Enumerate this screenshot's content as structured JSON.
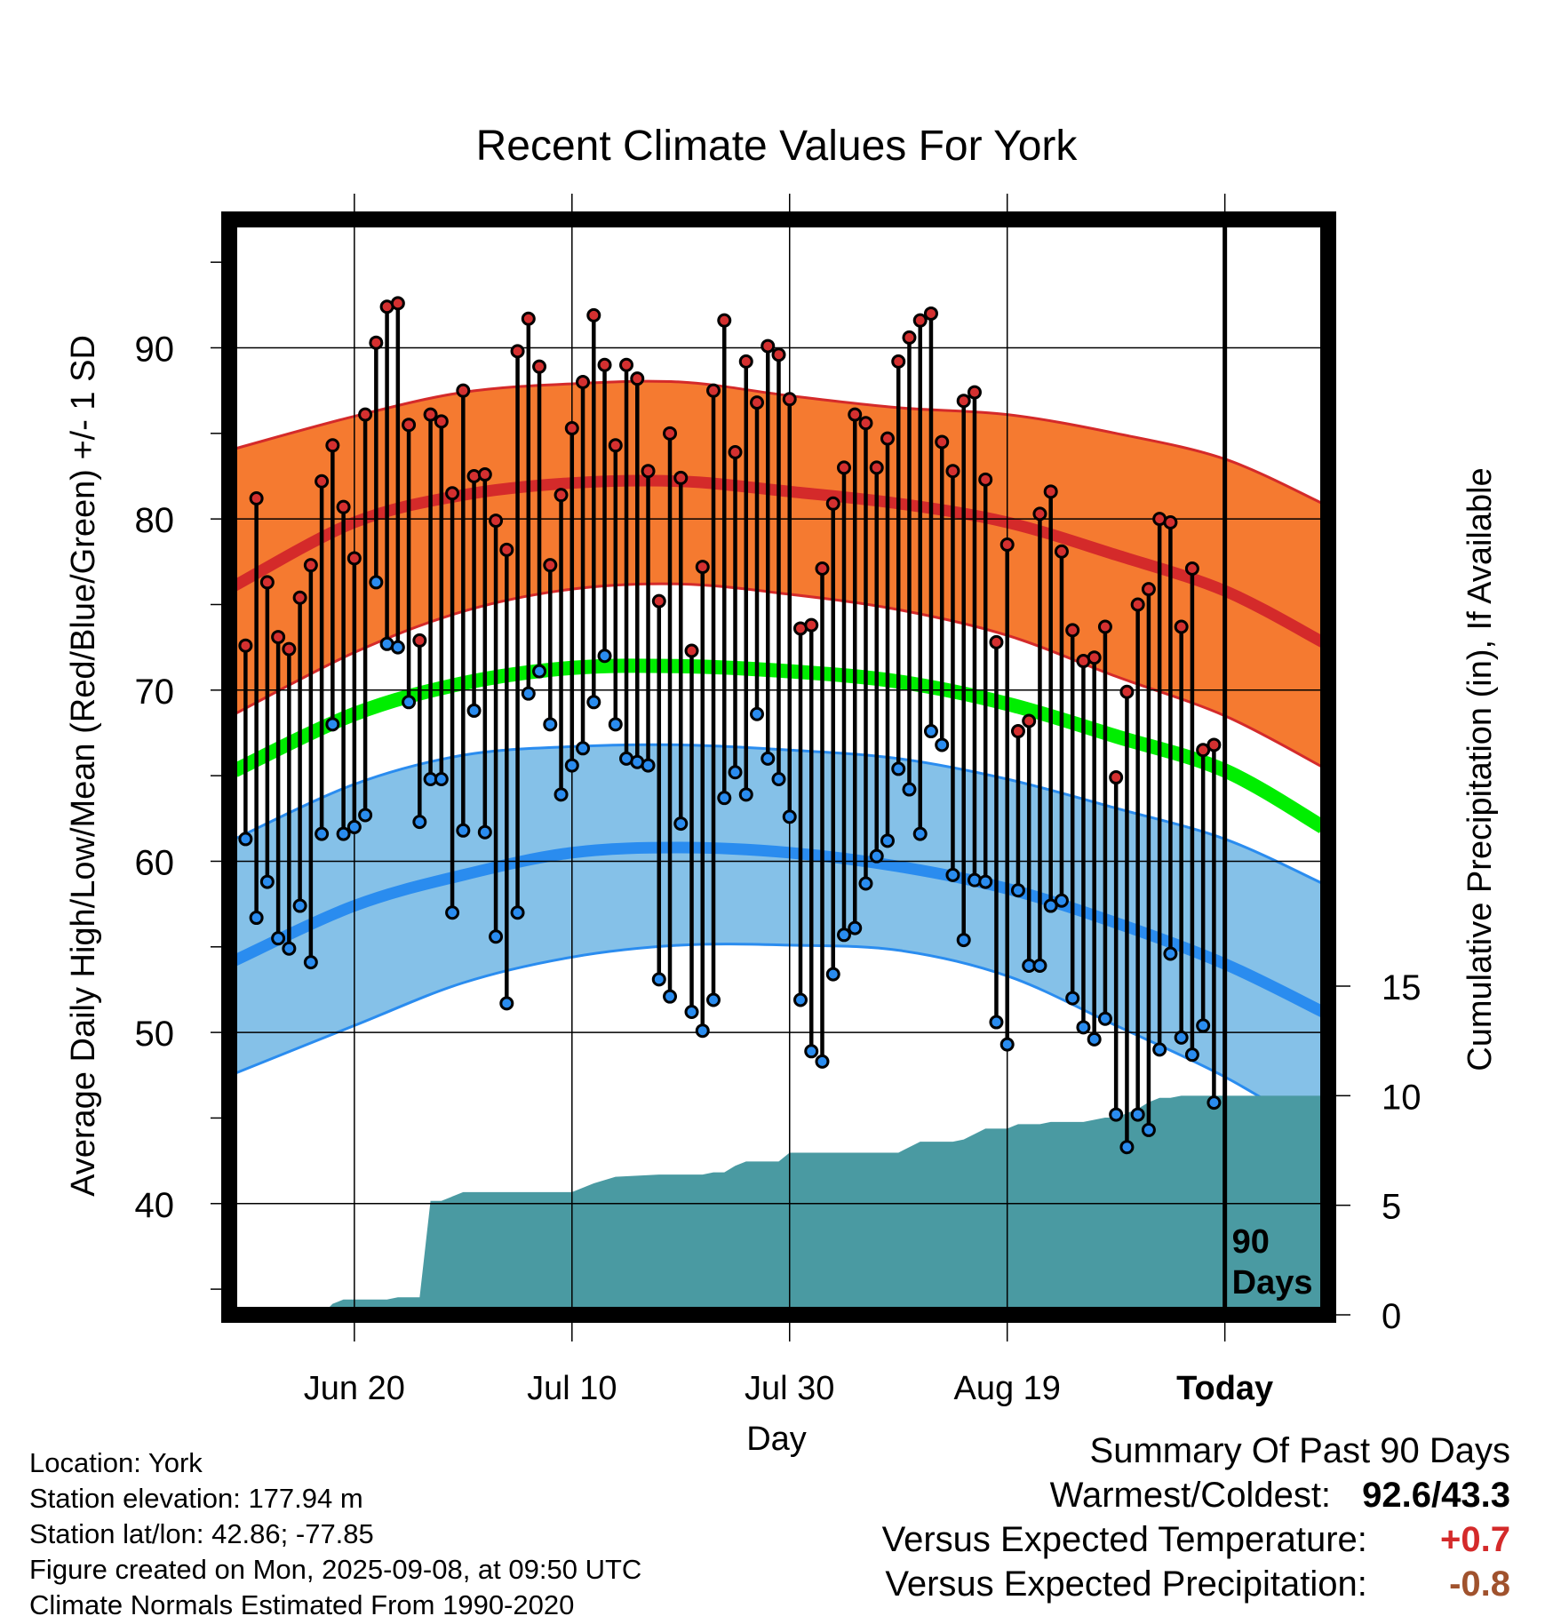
{
  "colors": {
    "high_band": "#f57a30",
    "high_band_edge": "#d42a2a",
    "high_mean": "#d42a2a",
    "mean_line": "#00ee00",
    "low_band": "#85c1e8",
    "low_band_edge": "#2a8cef",
    "low_mean": "#2a8cef",
    "precip_fill": "#4a9aa2",
    "high_dot": "#d43030",
    "low_dot": "#2a8cef",
    "temp_anomaly": "#d42a2a",
    "precip_anomaly": "#a0522d"
  },
  "chart_data": {
    "type": "line",
    "title": "Recent Climate Values For York",
    "xlabel": "Day",
    "ylabel_left": "Average Daily High/Low/Mean (Red/Blue/Green) +/- 1 SD",
    "ylabel_right": "Cumulative Precipitation (in), If Available",
    "x_tick_labels": [
      "Jun 20",
      "Jul 10",
      "Jul 30",
      "Aug 19",
      "Today"
    ],
    "x_tick_days": [
      -80,
      -60,
      -40,
      -20,
      0
    ],
    "xlim_days_relative_to_today": [
      -91.5,
      9.5
    ],
    "ylim_left": [
      33.5,
      97.5
    ],
    "yticks_left": [
      40,
      50,
      60,
      70,
      80,
      90
    ],
    "ylim_right": [
      0,
      15
    ],
    "yticks_right": [
      0,
      5,
      10,
      15
    ],
    "grid": true,
    "marker_annotation": "90 Days",
    "normals": {
      "days_relative_to_today": [
        -91,
        -80,
        -70,
        -60,
        -50,
        -40,
        -30,
        -20,
        -10,
        0,
        9
      ],
      "high_mean": [
        76.1,
        79.8,
        81.4,
        82.1,
        82.2,
        81.6,
        80.9,
        79.8,
        77.9,
        75.8,
        72.8
      ],
      "high_sd_upper": [
        84.1,
        86.0,
        87.4,
        87.9,
        88.0,
        87.2,
        86.5,
        86.1,
        85.0,
        83.5,
        80.9
      ],
      "high_sd_lower": [
        68.6,
        72.2,
        74.6,
        75.9,
        76.2,
        75.6,
        74.7,
        73.2,
        70.8,
        68.5,
        65.5
      ],
      "mean": [
        65.3,
        68.6,
        70.4,
        71.3,
        71.4,
        71.1,
        70.5,
        69.2,
        67.3,
        65.3,
        62.0
      ],
      "low_mean": [
        54.2,
        57.4,
        59.2,
        60.5,
        60.8,
        60.5,
        59.7,
        58.4,
        56.4,
        54.0,
        51.2
      ],
      "low_sd_upper": [
        61.3,
        64.5,
        66.2,
        66.7,
        66.8,
        66.5,
        66.0,
        64.8,
        63.1,
        61.3,
        58.7
      ],
      "low_sd_lower": [
        47.6,
        50.4,
        52.9,
        54.4,
        55.1,
        55.1,
        54.8,
        53.3,
        50.4,
        47.4,
        44.0
      ]
    },
    "daily": {
      "days_relative_to_today": [
        -90,
        -89,
        -88,
        -87,
        -86,
        -85,
        -84,
        -83,
        -82,
        -81,
        -80,
        -79,
        -78,
        -77,
        -76,
        -75,
        -74,
        -73,
        -72,
        -71,
        -70,
        -69,
        -68,
        -67,
        -66,
        -65,
        -64,
        -63,
        -62,
        -61,
        -60,
        -59,
        -58,
        -57,
        -56,
        -55,
        -54,
        -53,
        -52,
        -51,
        -50,
        -49,
        -48,
        -47,
        -46,
        -45,
        -44,
        -43,
        -42,
        -41,
        -40,
        -39,
        -38,
        -37,
        -36,
        -35,
        -34,
        -33,
        -32,
        -31,
        -30,
        -29,
        -28,
        -27,
        -26,
        -25,
        -24,
        -23,
        -22,
        -21,
        -20,
        -19,
        -18,
        -17,
        -16,
        -15,
        -14,
        -13,
        -12,
        -11,
        -10,
        -9,
        -8,
        -7,
        -6,
        -5,
        -4,
        -3,
        -2,
        -1
      ],
      "high": [
        72.6,
        81.2,
        76.3,
        73.1,
        72.4,
        75.4,
        77.3,
        82.2,
        84.3,
        80.7,
        77.7,
        86.1,
        90.3,
        92.4,
        92.6,
        85.5,
        72.9,
        86.1,
        85.7,
        81.5,
        87.5,
        82.5,
        82.6,
        79.9,
        78.2,
        89.8,
        91.7,
        88.9,
        77.3,
        81.4,
        85.3,
        88.0,
        91.9,
        89.0,
        84.3,
        89.0,
        88.2,
        82.8,
        75.2,
        85.0,
        82.4,
        72.3,
        77.2,
        87.5,
        91.6,
        83.9,
        89.2,
        86.8,
        90.1,
        89.6,
        87.0,
        73.6,
        73.8,
        77.1,
        80.9,
        83.0,
        86.1,
        85.6,
        83.0,
        84.7,
        89.2,
        90.6,
        91.6,
        92.0,
        84.5,
        82.8,
        86.9,
        87.4,
        82.3,
        72.8,
        78.5,
        67.6,
        68.2,
        80.3,
        81.6,
        78.1,
        73.5,
        71.7,
        71.9,
        73.7,
        64.9,
        69.9,
        75.0,
        75.9,
        80.0,
        79.8,
        73.7,
        77.1,
        66.5,
        66.8
      ],
      "low": [
        61.3,
        56.7,
        58.8,
        55.5,
        54.9,
        57.4,
        54.1,
        61.6,
        68.0,
        61.6,
        62.0,
        62.7,
        76.3,
        72.7,
        72.5,
        69.3,
        62.3,
        64.8,
        64.8,
        57.0,
        61.8,
        68.8,
        61.7,
        55.6,
        51.7,
        57.0,
        69.8,
        71.1,
        68.0,
        63.9,
        65.6,
        66.6,
        69.3,
        72.0,
        68.0,
        66.0,
        65.8,
        65.6,
        53.1,
        52.1,
        62.2,
        51.2,
        50.1,
        51.9,
        63.7,
        65.2,
        63.9,
        68.6,
        66.0,
        64.8,
        62.6,
        51.9,
        48.9,
        48.3,
        53.4,
        55.7,
        56.1,
        58.7,
        60.3,
        61.2,
        65.4,
        64.2,
        61.6,
        67.6,
        66.8,
        59.2,
        55.4,
        58.9,
        58.8,
        50.6,
        49.3,
        58.3,
        53.9,
        53.9,
        57.4,
        57.7,
        52.0,
        50.3,
        49.6,
        50.8,
        45.2,
        43.3,
        45.2,
        44.3,
        49.0,
        54.6,
        49.7,
        48.7,
        50.4,
        45.9
      ]
    },
    "cumulative_precip": {
      "days_relative_to_today": [
        -91,
        -83,
        -82,
        -81,
        -77,
        -76,
        -75,
        -74,
        -73,
        -72,
        -71,
        -70,
        -69,
        -60,
        -58,
        -56,
        -52,
        -48,
        -47,
        -46,
        -45,
        -44,
        -41,
        -40,
        -39,
        -38,
        -37,
        -30,
        -28,
        -26,
        -25,
        -24,
        -22,
        -20,
        -19,
        -18,
        -17,
        -16,
        -15,
        -14,
        -13,
        -11,
        -10,
        -8,
        -7,
        -6,
        -5,
        -4,
        -3,
        -2,
        -1,
        0,
        9
      ],
      "values": [
        0,
        0,
        0.5,
        0.7,
        0.7,
        0.8,
        0.8,
        0.8,
        5.2,
        5.2,
        5.4,
        5.6,
        5.6,
        5.6,
        6.0,
        6.3,
        6.4,
        6.4,
        6.5,
        6.5,
        6.8,
        7.0,
        7.0,
        7.4,
        7.4,
        7.4,
        7.4,
        7.4,
        7.9,
        7.9,
        7.9,
        8.0,
        8.5,
        8.5,
        8.7,
        8.7,
        8.7,
        8.8,
        8.8,
        8.8,
        8.8,
        9.0,
        9.0,
        9.4,
        9.7,
        9.9,
        9.9,
        10.0,
        10.0,
        10.0,
        10.0,
        10.0,
        10.0
      ]
    }
  },
  "footer": {
    "location": "Location: York",
    "elevation": "Station elevation: 177.94 m",
    "latlon": "Station lat/lon: 42.86; -77.85",
    "created": "Figure created on Mon, 2025-09-08, at 09:50 UTC",
    "normals": "Climate Normals Estimated From 1990-2020"
  },
  "summary": {
    "heading": "Summary Of Past 90 Days",
    "warm_cold_label": "Warmest/Coldest:",
    "warm_cold_value": "92.6/43.3",
    "temp_label": "Versus Expected Temperature:",
    "temp_value": "+0.7",
    "precip_label": "Versus Expected Precipitation:",
    "precip_value": "-0.8"
  }
}
